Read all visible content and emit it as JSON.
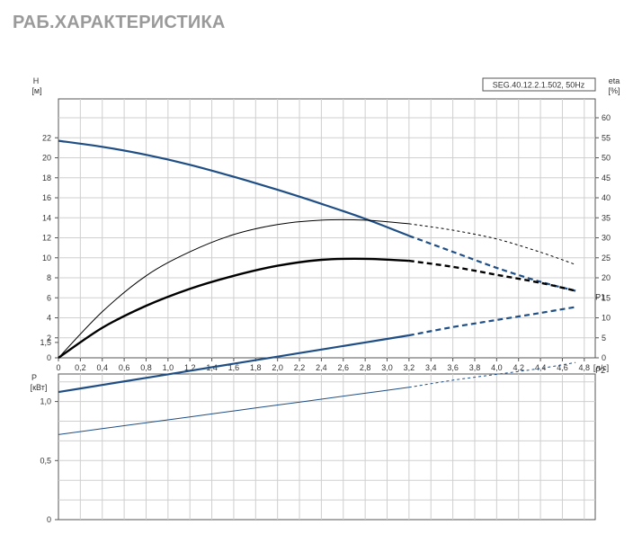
{
  "page": {
    "title": "РАБ.ХАРАКТЕРИСТИКА"
  },
  "chart_data": [
    {
      "type": "line",
      "title": "",
      "model_label": "SEG.40.12.2.1.502, 50Hz",
      "xlabel": "Q [л/с]",
      "x_unit_label": "Q [л/с]",
      "xlim": [
        0,
        4.9
      ],
      "x_ticks": [
        "0",
        "0,2",
        "0,4",
        "0,6",
        "0,8",
        "1,0",
        "1,2",
        "1,4",
        "1,6",
        "1,8",
        "2,0",
        "2,2",
        "2,4",
        "2,6",
        "2,8",
        "3,0",
        "3,2",
        "3,4",
        "3,6",
        "3,8",
        "4,0",
        "4,2",
        "4,4",
        "4,6",
        "4,8"
      ],
      "x_tick_values": [
        0,
        0.2,
        0.4,
        0.6,
        0.8,
        1.0,
        1.2,
        1.4,
        1.6,
        1.8,
        2.0,
        2.2,
        2.4,
        2.6,
        2.8,
        3.0,
        3.2,
        3.4,
        3.6,
        3.8,
        4.0,
        4.2,
        4.4,
        4.6,
        4.8
      ],
      "left_axis": {
        "label": "H",
        "unit": "[м]",
        "ylim": [
          0,
          26
        ],
        "ticks": [
          "0",
          "2",
          "4",
          "6",
          "8",
          "10",
          "12",
          "14",
          "16",
          "18",
          "20",
          "22"
        ],
        "tick_values": [
          0,
          2,
          4,
          6,
          8,
          10,
          12,
          14,
          16,
          18,
          20,
          22
        ]
      },
      "right_axis": {
        "label": "eta",
        "unit": "[%]",
        "ylim": [
          0,
          65
        ],
        "ticks": [
          "0",
          "5",
          "10",
          "15",
          "20",
          "25",
          "30",
          "35",
          "40",
          "45",
          "50",
          "55",
          "60"
        ],
        "tick_values": [
          0,
          5,
          10,
          15,
          20,
          25,
          30,
          35,
          40,
          45,
          50,
          55,
          60
        ]
      },
      "grid": true,
      "series": [
        {
          "axis": "left",
          "style": "head",
          "color": "#1f4e85",
          "x": [
            0,
            0.4,
            0.8,
            1.2,
            1.6,
            2.0,
            2.4,
            2.8,
            3.2,
            3.6,
            4.0,
            4.4,
            4.72
          ],
          "y": [
            21.7,
            21.1,
            20.3,
            19.3,
            18.1,
            16.8,
            15.4,
            13.9,
            12.2,
            10.6,
            9.0,
            7.6,
            6.7
          ],
          "solid_until": 3.2
        },
        {
          "axis": "right",
          "style": "thin",
          "color": "#000000",
          "x": [
            0,
            0.4,
            0.8,
            1.2,
            1.6,
            2.0,
            2.4,
            2.8,
            3.2,
            3.6,
            4.0,
            4.4,
            4.72
          ],
          "y": [
            0,
            11.5,
            20.5,
            26.5,
            30.8,
            33.3,
            34.4,
            34.4,
            33.5,
            31.9,
            29.7,
            26.4,
            23.3
          ],
          "solid_until": 3.2
        },
        {
          "axis": "left",
          "style": "thick",
          "color": "#000000",
          "x": [
            0,
            0.4,
            0.8,
            1.2,
            1.6,
            2.0,
            2.4,
            2.8,
            3.2,
            3.6,
            4.0,
            4.4,
            4.72
          ],
          "y": [
            0,
            3.0,
            5.2,
            6.9,
            8.2,
            9.2,
            9.8,
            9.9,
            9.7,
            9.1,
            8.3,
            7.5,
            6.7
          ],
          "solid_until": 3.2
        }
      ]
    },
    {
      "type": "line",
      "title": "",
      "xlabel": "",
      "xlim": [
        0,
        4.9
      ],
      "left_axis": {
        "label": "P",
        "unit": "[кВт]",
        "ylim": [
          0,
          2.0
        ],
        "ticks": [
          "0",
          "0,5",
          "1,0",
          "1,5"
        ],
        "tick_values": [
          0,
          0.5,
          1.0,
          1.5
        ]
      },
      "grid": true,
      "series": [
        {
          "name": "P1",
          "color": "#1f4e85",
          "thick": true,
          "x": [
            0,
            0.4,
            0.8,
            1.2,
            1.6,
            2.0,
            2.4,
            2.8,
            3.2,
            3.6,
            4.0,
            4.4,
            4.72
          ],
          "y": [
            1.08,
            1.14,
            1.2,
            1.26,
            1.32,
            1.38,
            1.44,
            1.5,
            1.56,
            1.63,
            1.69,
            1.75,
            1.8
          ],
          "solid_until": 3.2
        },
        {
          "name": "P2",
          "color": "#1f4e85",
          "thick": false,
          "x": [
            0,
            0.4,
            0.8,
            1.2,
            1.6,
            2.0,
            2.4,
            2.8,
            3.2,
            3.6,
            4.0,
            4.4,
            4.72
          ],
          "y": [
            0.72,
            0.77,
            0.82,
            0.87,
            0.92,
            0.97,
            1.02,
            1.07,
            1.12,
            1.18,
            1.23,
            1.28,
            1.33
          ],
          "solid_until": 3.2
        }
      ]
    }
  ]
}
